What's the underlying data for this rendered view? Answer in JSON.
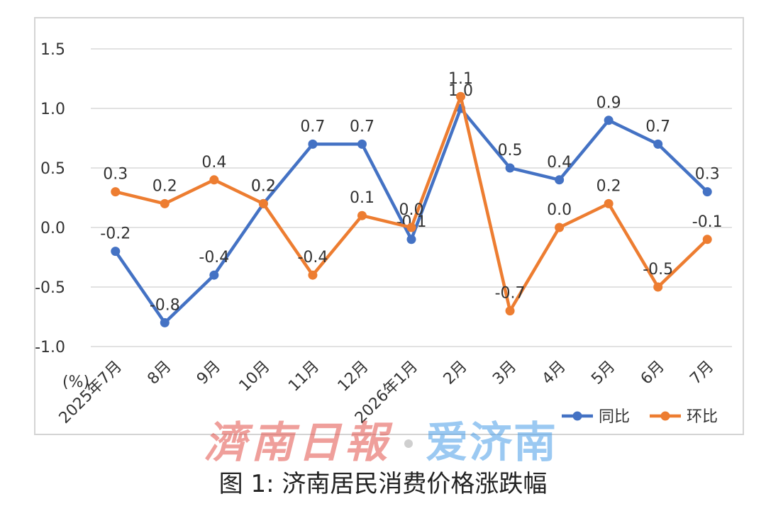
{
  "caption": "图 1:  济南居民消费价格涨跌幅",
  "watermark": {
    "left": "濟南日報",
    "right": "爱济南"
  },
  "colors": {
    "series1": "#4472c4",
    "series2": "#ed7d31",
    "grid": "#d9d9d9"
  },
  "chart_data": {
    "type": "line",
    "title": "",
    "ylabel": "(%)",
    "ylim": [
      -1.0,
      1.5
    ],
    "yticks": [
      "1.5",
      "1.0",
      "0.5",
      "0.0",
      "-0.5",
      "-1.0"
    ],
    "grid": true,
    "legend_position": "bottom-right",
    "categories": [
      "2025年7月",
      "8月",
      "9月",
      "10月",
      "11月",
      "12月",
      "2026年1月",
      "2月",
      "3月",
      "4月",
      "5月",
      "6月",
      "7月"
    ],
    "series": [
      {
        "name": "同比",
        "color": "#4472c4",
        "values": [
          -0.2,
          -0.8,
          -0.4,
          0.2,
          0.7,
          0.7,
          -0.1,
          1.0,
          0.5,
          0.4,
          0.9,
          0.7,
          0.3
        ],
        "labels": [
          "-0.2",
          "-0.8",
          "-0.4",
          "0.2",
          "0.7",
          "0.7",
          "-0.1",
          "1.0",
          "0.5",
          "0.4",
          "0.9",
          "0.7",
          "0.3"
        ]
      },
      {
        "name": "环比",
        "color": "#ed7d31",
        "values": [
          0.3,
          0.2,
          0.4,
          0.2,
          -0.4,
          0.1,
          0.0,
          1.1,
          -0.7,
          0.0,
          0.2,
          -0.5,
          -0.1
        ],
        "labels": [
          "0.3",
          "0.2",
          "0.4",
          "0.2",
          "-0.4",
          "0.1",
          "0.0",
          "1.1",
          "-0.7",
          "0.0",
          "0.2",
          "-0.5",
          "-0.1"
        ]
      }
    ]
  }
}
